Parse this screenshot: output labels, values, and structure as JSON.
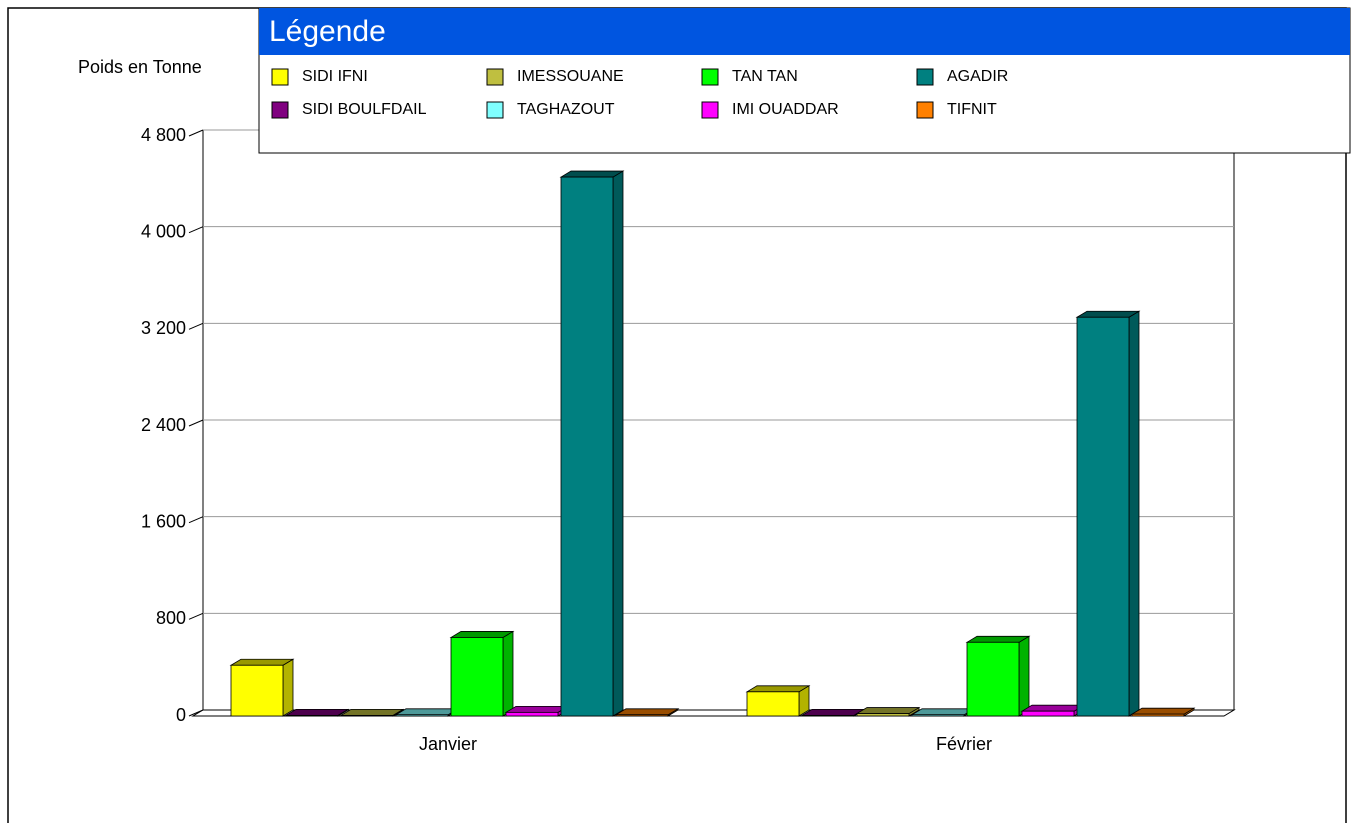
{
  "chart_data": {
    "type": "bar3d",
    "y_label": "Poids en Tonne",
    "legend_title": "Légende",
    "categories": [
      "Janvier",
      "Février"
    ],
    "series": [
      {
        "name": "SIDI IFNI",
        "color": "#ffff00",
        "values": [
          420,
          200
        ]
      },
      {
        "name": "SIDI BOULFDAIL",
        "color": "#800080",
        "values": [
          5,
          5
        ]
      },
      {
        "name": "IMESSOUANE",
        "color": "#bfbf40",
        "values": [
          5,
          20
        ]
      },
      {
        "name": "TAGHAZOUT",
        "color": "#80ffff",
        "values": [
          10,
          10
        ]
      },
      {
        "name": "TAN TAN",
        "color": "#00ff00",
        "values": [
          650,
          610
        ]
      },
      {
        "name": "IMI OUADDAR",
        "color": "#ff00ff",
        "values": [
          30,
          40
        ]
      },
      {
        "name": "AGADIR",
        "color": "#008080",
        "values": [
          4460,
          3300
        ]
      },
      {
        "name": "TIFNIT",
        "color": "#ff8000",
        "values": [
          10,
          15
        ]
      }
    ],
    "ylim": [
      0,
      4800
    ],
    "yticks": [
      0,
      800,
      {
        "value": 1600,
        "label": "1 600"
      },
      {
        "value": 2400,
        "label": "2 400"
      },
      {
        "value": 3200,
        "label": "3 200"
      },
      {
        "value": 4000,
        "label": "4 000"
      },
      {
        "value": 4800,
        "label": "4 800"
      }
    ],
    "grid": true
  }
}
